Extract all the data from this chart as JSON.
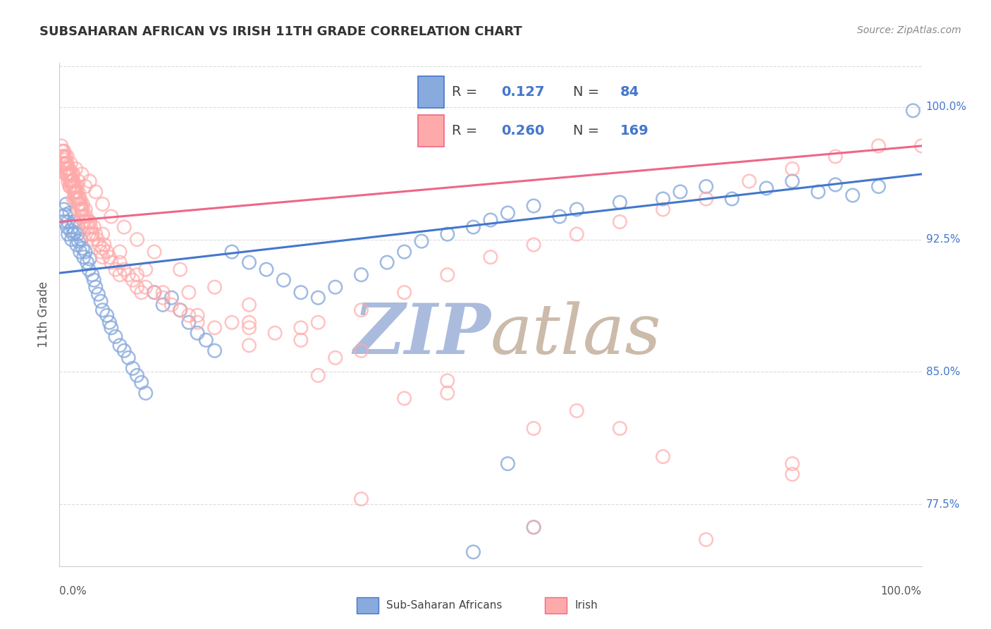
{
  "title": "SUBSAHARAN AFRICAN VS IRISH 11TH GRADE CORRELATION CHART",
  "source": "Source: ZipAtlas.com",
  "ylabel": "11th Grade",
  "blue_R": 0.127,
  "blue_N": 84,
  "pink_R": 0.26,
  "pink_N": 169,
  "blue_color": "#88AADD",
  "pink_color": "#FFAAAA",
  "blue_line_color": "#4477CC",
  "pink_line_color": "#EE6688",
  "watermark_zip_color": "#AABBDD",
  "watermark_atlas_color": "#CCBBAA",
  "background_color": "#FFFFFF",
  "grid_color": "#DDDDDD",
  "xlim": [
    0.0,
    1.0
  ],
  "ylim": [
    0.74,
    1.025
  ],
  "right_yticks": [
    0.775,
    0.85,
    0.925,
    1.0
  ],
  "right_ytick_labels": [
    "77.5%",
    "85.0%",
    "92.5%",
    "100.0%"
  ],
  "blue_line_x0": 0.0,
  "blue_line_y0": 0.906,
  "blue_line_x1": 1.0,
  "blue_line_y1": 0.962,
  "pink_line_x0": 0.0,
  "pink_line_y0": 0.935,
  "pink_line_x1": 1.0,
  "pink_line_y1": 0.978,
  "blue_scatter_x": [
    0.003,
    0.005,
    0.006,
    0.007,
    0.008,
    0.009,
    0.01,
    0.01,
    0.012,
    0.013,
    0.014,
    0.015,
    0.016,
    0.017,
    0.018,
    0.02,
    0.021,
    0.022,
    0.024,
    0.025,
    0.027,
    0.028,
    0.03,
    0.032,
    0.034,
    0.035,
    0.038,
    0.04,
    0.042,
    0.045,
    0.048,
    0.05,
    0.055,
    0.058,
    0.06,
    0.065,
    0.07,
    0.075,
    0.08,
    0.085,
    0.09,
    0.095,
    0.1,
    0.11,
    0.12,
    0.13,
    0.14,
    0.15,
    0.16,
    0.17,
    0.18,
    0.2,
    0.22,
    0.24,
    0.26,
    0.28,
    0.3,
    0.32,
    0.35,
    0.38,
    0.4,
    0.42,
    0.45,
    0.48,
    0.5,
    0.52,
    0.55,
    0.58,
    0.6,
    0.65,
    0.7,
    0.72,
    0.75,
    0.78,
    0.82,
    0.85,
    0.88,
    0.9,
    0.92,
    0.95,
    0.52,
    0.55,
    0.48,
    0.99
  ],
  "blue_scatter_y": [
    0.938,
    0.942,
    0.935,
    0.939,
    0.945,
    0.932,
    0.928,
    0.935,
    0.94,
    0.93,
    0.925,
    0.932,
    0.928,
    0.935,
    0.929,
    0.922,
    0.928,
    0.924,
    0.918,
    0.925,
    0.92,
    0.915,
    0.918,
    0.912,
    0.908,
    0.914,
    0.905,
    0.902,
    0.898,
    0.894,
    0.89,
    0.885,
    0.882,
    0.878,
    0.875,
    0.87,
    0.865,
    0.862,
    0.858,
    0.852,
    0.848,
    0.844,
    0.838,
    0.895,
    0.888,
    0.892,
    0.885,
    0.878,
    0.872,
    0.868,
    0.862,
    0.918,
    0.912,
    0.908,
    0.902,
    0.895,
    0.892,
    0.898,
    0.905,
    0.912,
    0.918,
    0.924,
    0.928,
    0.932,
    0.936,
    0.94,
    0.944,
    0.938,
    0.942,
    0.946,
    0.948,
    0.952,
    0.955,
    0.948,
    0.954,
    0.958,
    0.952,
    0.956,
    0.95,
    0.955,
    0.798,
    0.762,
    0.748,
    0.998
  ],
  "pink_scatter_x": [
    0.002,
    0.003,
    0.004,
    0.004,
    0.005,
    0.005,
    0.006,
    0.006,
    0.007,
    0.007,
    0.008,
    0.008,
    0.009,
    0.009,
    0.01,
    0.01,
    0.011,
    0.011,
    0.012,
    0.012,
    0.013,
    0.013,
    0.014,
    0.014,
    0.015,
    0.015,
    0.016,
    0.016,
    0.017,
    0.017,
    0.018,
    0.018,
    0.019,
    0.019,
    0.02,
    0.02,
    0.021,
    0.022,
    0.022,
    0.023,
    0.024,
    0.024,
    0.025,
    0.025,
    0.026,
    0.027,
    0.027,
    0.028,
    0.029,
    0.03,
    0.031,
    0.032,
    0.033,
    0.034,
    0.035,
    0.036,
    0.038,
    0.039,
    0.04,
    0.042,
    0.044,
    0.046,
    0.048,
    0.05,
    0.052,
    0.055,
    0.058,
    0.06,
    0.065,
    0.07,
    0.075,
    0.08,
    0.085,
    0.09,
    0.095,
    0.1,
    0.11,
    0.12,
    0.13,
    0.14,
    0.15,
    0.16,
    0.18,
    0.2,
    0.22,
    0.25,
    0.28,
    0.3,
    0.35,
    0.4,
    0.45,
    0.5,
    0.55,
    0.6,
    0.65,
    0.7,
    0.75,
    0.8,
    0.85,
    0.9,
    0.95,
    1.0,
    0.003,
    0.005,
    0.007,
    0.009,
    0.011,
    0.013,
    0.016,
    0.019,
    0.022,
    0.026,
    0.03,
    0.035,
    0.042,
    0.05,
    0.06,
    0.075,
    0.09,
    0.11,
    0.14,
    0.18,
    0.22,
    0.28,
    0.35,
    0.45,
    0.6,
    0.008,
    0.012,
    0.016,
    0.022,
    0.028,
    0.038,
    0.05,
    0.07,
    0.09,
    0.12,
    0.16,
    0.22,
    0.3,
    0.4,
    0.55,
    0.7,
    0.85,
    0.005,
    0.008,
    0.012,
    0.018,
    0.025,
    0.035,
    0.05,
    0.07,
    0.1,
    0.15,
    0.22,
    0.32,
    0.45,
    0.65,
    0.85,
    0.35,
    0.55,
    0.75
  ],
  "pink_scatter_y": [
    0.978,
    0.975,
    0.972,
    0.968,
    0.975,
    0.972,
    0.97,
    0.968,
    0.972,
    0.968,
    0.965,
    0.962,
    0.968,
    0.965,
    0.962,
    0.958,
    0.965,
    0.962,
    0.958,
    0.962,
    0.958,
    0.962,
    0.958,
    0.955,
    0.962,
    0.958,
    0.955,
    0.958,
    0.955,
    0.952,
    0.955,
    0.952,
    0.948,
    0.952,
    0.955,
    0.952,
    0.948,
    0.945,
    0.952,
    0.948,
    0.945,
    0.948,
    0.945,
    0.942,
    0.938,
    0.945,
    0.942,
    0.938,
    0.935,
    0.942,
    0.938,
    0.935,
    0.932,
    0.928,
    0.935,
    0.932,
    0.928,
    0.925,
    0.932,
    0.928,
    0.925,
    0.922,
    0.918,
    0.915,
    0.922,
    0.918,
    0.915,
    0.912,
    0.908,
    0.905,
    0.908,
    0.905,
    0.902,
    0.898,
    0.895,
    0.898,
    0.895,
    0.892,
    0.888,
    0.885,
    0.882,
    0.878,
    0.875,
    0.878,
    0.875,
    0.872,
    0.868,
    0.878,
    0.885,
    0.895,
    0.905,
    0.915,
    0.922,
    0.928,
    0.935,
    0.942,
    0.948,
    0.958,
    0.965,
    0.972,
    0.978,
    0.978,
    0.972,
    0.975,
    0.968,
    0.972,
    0.965,
    0.968,
    0.962,
    0.965,
    0.958,
    0.962,
    0.955,
    0.958,
    0.952,
    0.945,
    0.938,
    0.932,
    0.925,
    0.918,
    0.908,
    0.898,
    0.888,
    0.875,
    0.862,
    0.845,
    0.828,
    0.962,
    0.955,
    0.948,
    0.942,
    0.935,
    0.928,
    0.92,
    0.912,
    0.905,
    0.895,
    0.882,
    0.865,
    0.848,
    0.835,
    0.818,
    0.802,
    0.792,
    0.968,
    0.962,
    0.955,
    0.948,
    0.942,
    0.935,
    0.928,
    0.918,
    0.908,
    0.895,
    0.878,
    0.858,
    0.838,
    0.818,
    0.798,
    0.778,
    0.762,
    0.755
  ]
}
